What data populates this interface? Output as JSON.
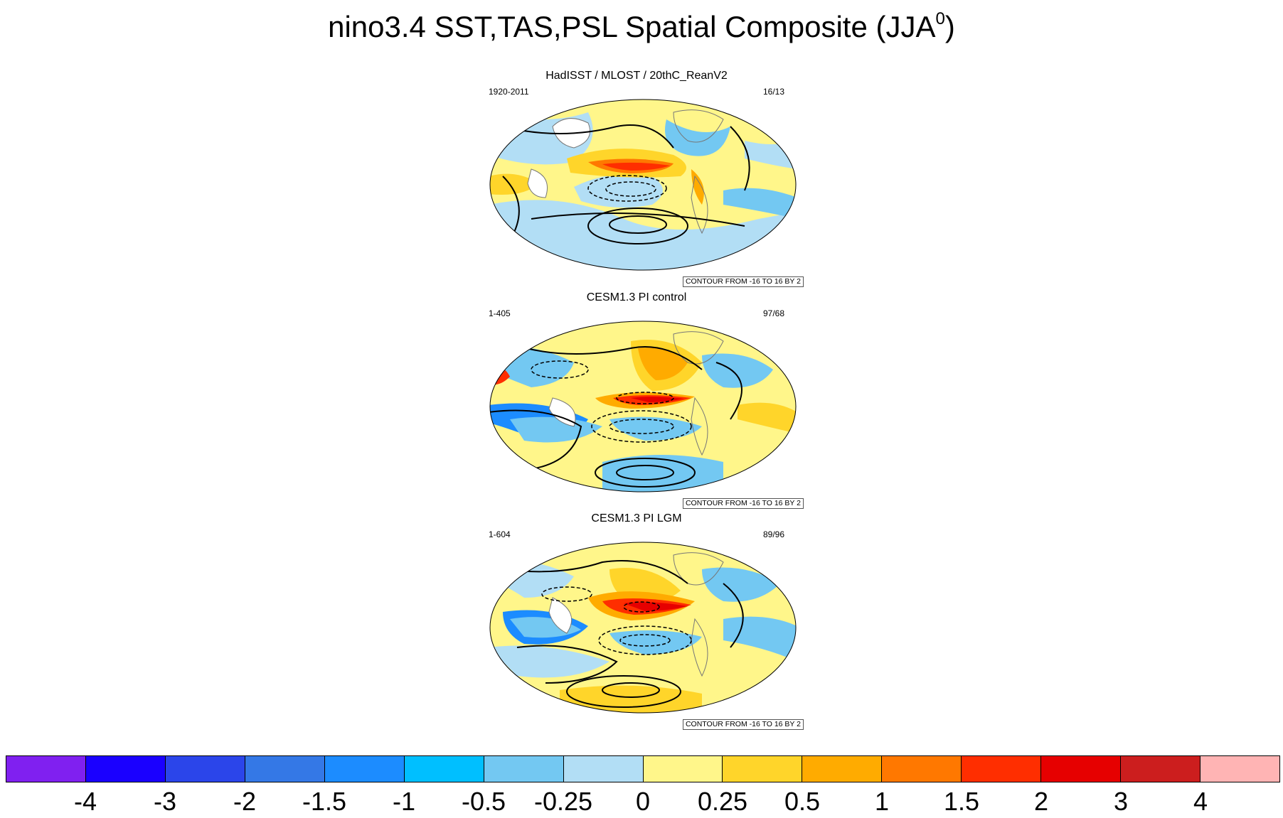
{
  "figure": {
    "title_main": "nino3.4 SST,TAS,PSL Spatial Composite (JJA",
    "title_sup": "0",
    "title_end": ")"
  },
  "panels": [
    {
      "title": "HadISST / MLOST / 20thC_ReanV2",
      "left_label": "1920-2011",
      "right_label": "16/13",
      "contour_note": "CONTOUR FROM -16 TO 16 BY 2"
    },
    {
      "title": "CESM1.3 PI control",
      "left_label": "1-405",
      "right_label": "97/68",
      "contour_note": "CONTOUR FROM -16 TO 16 BY 2"
    },
    {
      "title": "CESM1.3 PI LGM",
      "left_label": "1-604",
      "right_label": "89/96",
      "contour_note": "CONTOUR FROM -16 TO 16 BY 2"
    }
  ],
  "colorbar": {
    "colors": [
      "#8020f0",
      "#1a00ff",
      "#2b45ea",
      "#3478e6",
      "#1c8cff",
      "#00bfff",
      "#73c8f2",
      "#b2def5",
      "#fff68a",
      "#ffd52a",
      "#ffab00",
      "#ff7800",
      "#ff2e00",
      "#e60000",
      "#cc1e1e",
      "#ffb4b4"
    ],
    "labels": [
      "-4",
      "-3",
      "-2",
      "-1.5",
      "-1",
      "-0.5",
      "-0.25",
      "0",
      "0.25",
      "0.5",
      "1",
      "1.5",
      "2",
      "3",
      "4"
    ]
  }
}
